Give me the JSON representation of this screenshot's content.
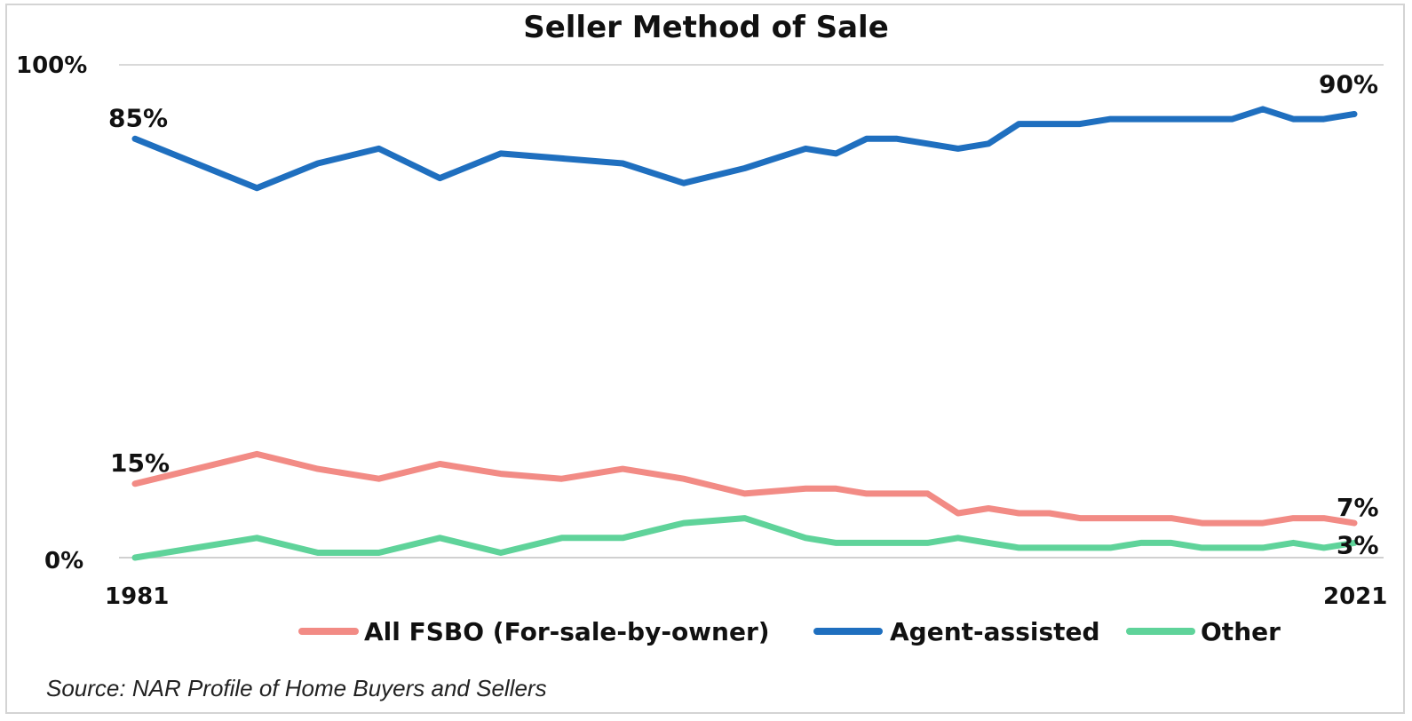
{
  "chart_data": {
    "type": "line",
    "title": "Seller Method of Sale",
    "xlabel": "",
    "ylabel": "",
    "ylim": [
      0,
      100
    ],
    "yticks": [
      "0%",
      "100%"
    ],
    "x_start_label": "1981",
    "x_end_label": "2021",
    "grid": "horizontal lines at 0% and 100%",
    "legend": "bottom",
    "x": [
      1981,
      1985,
      1987,
      1989,
      1991,
      1993,
      1995,
      1997,
      1999,
      2001,
      2003,
      2004,
      2005,
      2006,
      2007,
      2008,
      2009,
      2010,
      2011,
      2012,
      2013,
      2014,
      2015,
      2016,
      2017,
      2018,
      2019,
      2020,
      2021
    ],
    "series": [
      {
        "name": "All FSBO (For-sale-by-owner)",
        "color": "#f28b85",
        "values": [
          15,
          21,
          18,
          16,
          19,
          17,
          16,
          18,
          16,
          13,
          14,
          14,
          13,
          13,
          13,
          9,
          10,
          9,
          9,
          8,
          8,
          8,
          8,
          7,
          7,
          7,
          8,
          8,
          7
        ],
        "start_label": "15%",
        "end_label": "7%"
      },
      {
        "name": "Agent-assisted",
        "color": "#1f6fbf",
        "values": [
          85,
          75,
          80,
          83,
          77,
          82,
          81,
          80,
          76,
          79,
          83,
          82,
          85,
          85,
          84,
          83,
          84,
          88,
          88,
          88,
          89,
          89,
          89,
          89,
          89,
          91,
          89,
          89,
          90
        ],
        "start_label": "85%",
        "end_label": "90%"
      },
      {
        "name": "Other",
        "color": "#5fd39a",
        "values": [
          0,
          4,
          1,
          1,
          4,
          1,
          4,
          4,
          7,
          8,
          4,
          3,
          3,
          3,
          3,
          4,
          3,
          2,
          2,
          2,
          2,
          3,
          3,
          2,
          2,
          2,
          3,
          2,
          3
        ],
        "start_label": "",
        "end_label": "3%"
      }
    ],
    "source": "Source: NAR Profile of Home Buyers and Sellers"
  }
}
